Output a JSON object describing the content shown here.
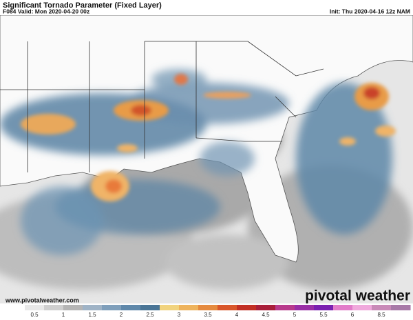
{
  "header": {
    "title": "Significant Tornado Parameter (Fixed Layer)",
    "valid": "F084 Valid: Mon 2020-04-20 00z",
    "init": "Init: Thu 2020-04-16 12z NAM"
  },
  "footer": {
    "website": "www.pivotalweather.com",
    "brand": "pivotal weather"
  },
  "colorbar": {
    "labels": [
      0.5,
      1,
      1.5,
      2,
      2.5,
      3,
      3.5,
      4,
      4.5,
      5,
      5.5,
      6,
      8.5
    ]
  }
}
